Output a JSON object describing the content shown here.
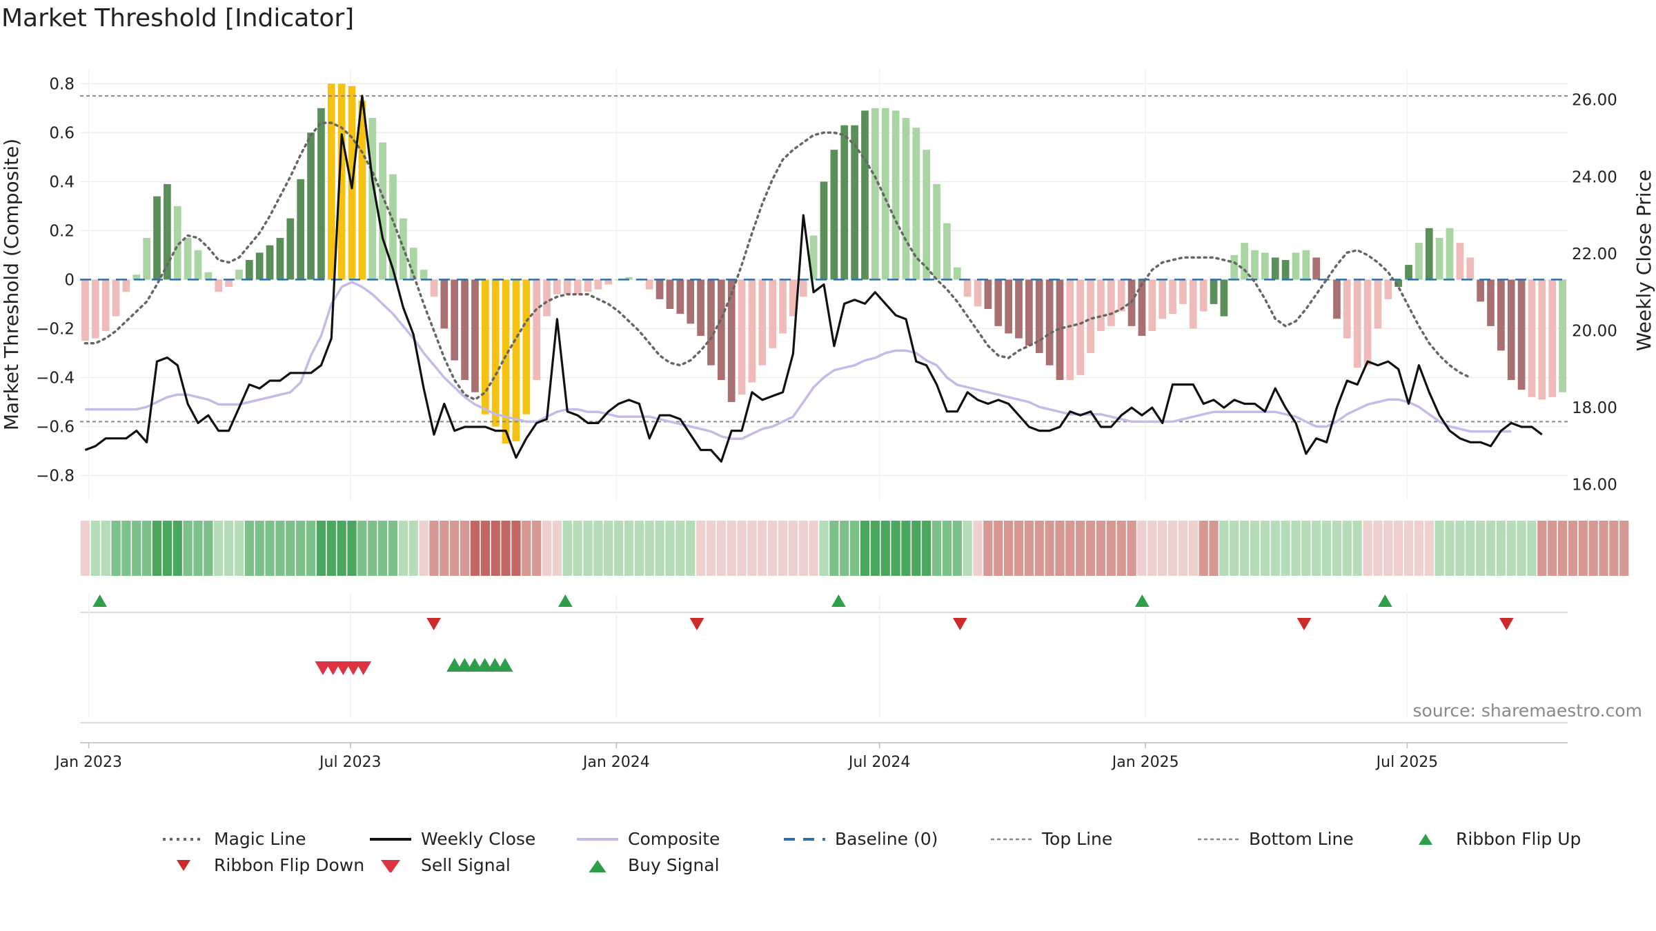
{
  "title": "Market Threshold [Indicator]",
  "source": "source: sharemaestro.com",
  "colors": {
    "bar_strong_green": "#5a8f5a",
    "bar_light_green": "#a8d5a2",
    "bar_strong_red": "#a87070",
    "bar_light_red": "#eebbb8",
    "bar_yellow": "#f5c211",
    "magic_line": "#666666",
    "weekly_close": "#111111",
    "composite": "#c3bce8",
    "baseline": "#2e6fa8",
    "threshold_line": "#888888",
    "ribbon_up": "#2e9e4a",
    "ribbon_down": "#cc2b2b",
    "sell": "#dd3344",
    "buy": "#2e9e4a"
  },
  "chart_data": [
    {
      "type": "bar",
      "title": "Market Threshold [Indicator]",
      "ylabel": "Market Threshold (Composite)",
      "y2label": "Weekly Close Price",
      "ylim": [
        -0.9,
        0.86
      ],
      "y2lim": [
        15.6,
        26.8
      ],
      "yticks": [
        "0.8",
        "0.6",
        "0.4",
        "0.2",
        "0",
        "−0.2",
        "−0.4",
        "−0.6",
        "−0.8"
      ],
      "y2ticks": [
        "26.00",
        "24.00",
        "22.00",
        "20.00",
        "18.00",
        "16.00"
      ],
      "xticks": [
        "Jan 2023",
        "Jul 2023",
        "Jan 2024",
        "Jul 2024",
        "Jan 2025",
        "Jul 2025"
      ],
      "x_start": "2022-12-26",
      "x_end": "2025-10-20",
      "top_line": 0.75,
      "bottom_line": -0.58,
      "grid": true,
      "legend_position": "bottom",
      "histogram_composite": [
        -0.25,
        -0.24,
        -0.21,
        -0.15,
        -0.05,
        0.02,
        0.17,
        0.34,
        0.39,
        0.3,
        0.17,
        0.12,
        0.03,
        -0.05,
        -0.03,
        0.04,
        0.08,
        0.11,
        0.14,
        0.17,
        0.25,
        0.41,
        0.6,
        0.7,
        0.8,
        0.8,
        0.79,
        0.73,
        0.66,
        0.56,
        0.43,
        0.25,
        0.13,
        0.04,
        -0.07,
        -0.2,
        -0.33,
        -0.41,
        -0.46,
        -0.55,
        -0.6,
        -0.67,
        -0.66,
        -0.55,
        -0.41,
        -0.15,
        -0.06,
        -0.06,
        -0.06,
        -0.05,
        -0.04,
        -0.02,
        0.0,
        0.01,
        0.0,
        -0.04,
        -0.08,
        -0.12,
        -0.14,
        -0.18,
        -0.23,
        -0.35,
        -0.41,
        -0.5,
        -0.47,
        -0.42,
        -0.35,
        -0.28,
        -0.22,
        -0.15,
        -0.07,
        0.18,
        0.4,
        0.53,
        0.63,
        0.63,
        0.69,
        0.7,
        0.7,
        0.69,
        0.66,
        0.62,
        0.53,
        0.39,
        0.23,
        0.05,
        -0.07,
        -0.11,
        -0.12,
        -0.19,
        -0.22,
        -0.24,
        -0.27,
        -0.3,
        -0.35,
        -0.41,
        -0.41,
        -0.39,
        -0.3,
        -0.21,
        -0.19,
        -0.13,
        -0.19,
        -0.23,
        -0.21,
        -0.16,
        -0.14,
        -0.1,
        -0.2,
        -0.13,
        -0.1,
        -0.15,
        0.1,
        0.15,
        0.12,
        0.11,
        0.09,
        0.08,
        0.11,
        0.12,
        0.09,
        0.0,
        -0.16,
        -0.24,
        -0.36,
        -0.35,
        -0.2,
        -0.08,
        -0.03,
        0.06,
        0.15,
        0.21,
        0.17,
        0.21,
        0.15,
        0.09,
        -0.09,
        -0.19,
        -0.29,
        -0.41,
        -0.45,
        -0.48,
        -0.49,
        -0.48,
        -0.46
      ],
      "histogram_colors": [
        "lr",
        "lr",
        "lr",
        "lr",
        "lr",
        "lg",
        "lg",
        "sg",
        "sg",
        "lg",
        "lg",
        "lg",
        "lg",
        "lr",
        "lr",
        "lg",
        "sg",
        "sg",
        "sg",
        "sg",
        "sg",
        "sg",
        "sg",
        "sg",
        "y",
        "y",
        "y",
        "y",
        "lg",
        "lg",
        "lg",
        "lg",
        "lg",
        "lg",
        "lr",
        "sr",
        "sr",
        "sr",
        "sr",
        "y",
        "y",
        "y",
        "y",
        "y",
        "lr",
        "lr",
        "lr",
        "lr",
        "lr",
        "lr",
        "lr",
        "lr",
        "lg",
        "lg",
        "lr",
        "lr",
        "sr",
        "sr",
        "sr",
        "sr",
        "sr",
        "sr",
        "sr",
        "sr",
        "lr",
        "lr",
        "lr",
        "lr",
        "lr",
        "lr",
        "lr",
        "lg",
        "sg",
        "sg",
        "sg",
        "sg",
        "sg",
        "lg",
        "lg",
        "lg",
        "lg",
        "lg",
        "lg",
        "lg",
        "lg",
        "lg",
        "lr",
        "lr",
        "sr",
        "sr",
        "sr",
        "sr",
        "sr",
        "sr",
        "sr",
        "sr",
        "lr",
        "lr",
        "lr",
        "lr",
        "lr",
        "lr",
        "sr",
        "sr",
        "lr",
        "lr",
        "lr",
        "lr",
        "lr",
        "lr",
        "sg",
        "sg",
        "lg",
        "lg",
        "lg",
        "lg",
        "sg",
        "sg",
        "lg",
        "lg",
        "sr",
        "sr",
        "sr",
        "lr",
        "lr",
        "lr",
        "lr",
        "lr",
        "sg",
        "sg",
        "lg",
        "sg",
        "lg",
        "lg",
        "lr",
        "lr",
        "sr",
        "sr",
        "sr",
        "sr",
        "sr",
        "lr",
        "lr",
        "lr"
      ],
      "series": [
        {
          "name": "Magic Line",
          "style": "dotted",
          "values": [
            -0.26,
            -0.26,
            -0.24,
            -0.21,
            -0.17,
            -0.13,
            -0.09,
            -0.02,
            0.06,
            0.14,
            0.18,
            0.17,
            0.13,
            0.08,
            0.07,
            0.09,
            0.14,
            0.19,
            0.26,
            0.34,
            0.42,
            0.51,
            0.59,
            0.64,
            0.64,
            0.62,
            0.58,
            0.52,
            0.44,
            0.34,
            0.24,
            0.13,
            0.02,
            -0.1,
            -0.21,
            -0.32,
            -0.41,
            -0.47,
            -0.49,
            -0.46,
            -0.39,
            -0.31,
            -0.24,
            -0.17,
            -0.12,
            -0.09,
            -0.07,
            -0.06,
            -0.06,
            -0.06,
            -0.08,
            -0.1,
            -0.13,
            -0.17,
            -0.21,
            -0.26,
            -0.31,
            -0.34,
            -0.35,
            -0.33,
            -0.29,
            -0.24,
            -0.16,
            -0.06,
            0.06,
            0.19,
            0.31,
            0.41,
            0.49,
            0.53,
            0.56,
            0.59,
            0.6,
            0.6,
            0.59,
            0.55,
            0.49,
            0.42,
            0.33,
            0.24,
            0.16,
            0.09,
            0.05,
            0.0,
            -0.04,
            -0.09,
            -0.15,
            -0.21,
            -0.27,
            -0.31,
            -0.32,
            -0.29,
            -0.27,
            -0.25,
            -0.22,
            -0.2,
            -0.19,
            -0.18,
            -0.16,
            -0.15,
            -0.14,
            -0.12,
            -0.09,
            -0.02,
            0.04,
            0.07,
            0.08,
            0.09,
            0.09,
            0.09,
            0.09,
            0.08,
            0.07,
            0.04,
            -0.01,
            -0.08,
            -0.16,
            -0.19,
            -0.17,
            -0.12,
            -0.06,
            0.0,
            0.06,
            0.11,
            0.12,
            0.1,
            0.07,
            0.03,
            -0.03,
            -0.11,
            -0.19,
            -0.26,
            -0.31,
            -0.35,
            -0.38,
            -0.4
          ]
        },
        {
          "name": "Weekly Close",
          "axis": "right",
          "values": [
            16.9,
            17.0,
            17.2,
            17.2,
            17.2,
            17.4,
            17.1,
            19.2,
            19.3,
            19.1,
            18.1,
            17.6,
            17.8,
            17.4,
            17.4,
            18.0,
            18.6,
            18.5,
            18.7,
            18.7,
            18.9,
            18.9,
            18.9,
            19.1,
            19.8,
            25.1,
            23.7,
            26.1,
            23.9,
            22.4,
            21.6,
            20.6,
            19.9,
            18.5,
            17.3,
            18.1,
            17.4,
            17.5,
            17.5,
            17.5,
            17.4,
            17.4,
            16.7,
            17.2,
            17.6,
            17.7,
            20.3,
            17.9,
            17.8,
            17.6,
            17.6,
            17.9,
            18.1,
            18.2,
            18.1,
            17.2,
            17.8,
            17.8,
            17.7,
            17.3,
            16.9,
            16.9,
            16.6,
            17.4,
            17.4,
            18.4,
            18.2,
            18.3,
            18.4,
            19.4,
            23.0,
            21.0,
            21.2,
            19.6,
            20.7,
            20.8,
            20.7,
            21.0,
            20.7,
            20.4,
            20.3,
            19.2,
            19.1,
            18.6,
            17.9,
            17.9,
            18.4,
            18.2,
            18.1,
            18.2,
            18.1,
            17.8,
            17.5,
            17.4,
            17.4,
            17.5,
            17.9,
            17.8,
            17.9,
            17.5,
            17.5,
            17.8,
            18.0,
            17.8,
            18.0,
            17.6,
            18.6,
            18.6,
            18.6,
            18.1,
            18.2,
            18.0,
            18.2,
            18.1,
            18.1,
            17.9,
            18.5,
            18.0,
            17.6,
            16.8,
            17.2,
            17.1,
            18.0,
            18.7,
            18.6,
            19.2,
            19.1,
            19.2,
            19.0,
            18.1,
            19.1,
            18.4,
            17.8,
            17.4,
            17.2,
            17.1,
            17.1,
            17.0,
            17.4,
            17.6,
            17.5,
            17.5,
            17.3
          ]
        },
        {
          "name": "Composite",
          "values": [
            -0.53,
            -0.53,
            -0.53,
            -0.53,
            -0.53,
            -0.53,
            -0.52,
            -0.5,
            -0.48,
            -0.47,
            -0.47,
            -0.48,
            -0.49,
            -0.51,
            -0.51,
            -0.51,
            -0.5,
            -0.49,
            -0.48,
            -0.47,
            -0.46,
            -0.42,
            -0.31,
            -0.23,
            -0.1,
            -0.03,
            -0.01,
            -0.03,
            -0.06,
            -0.1,
            -0.14,
            -0.19,
            -0.24,
            -0.3,
            -0.35,
            -0.4,
            -0.44,
            -0.48,
            -0.51,
            -0.53,
            -0.55,
            -0.56,
            -0.57,
            -0.58,
            -0.58,
            -0.56,
            -0.54,
            -0.53,
            -0.53,
            -0.54,
            -0.54,
            -0.55,
            -0.56,
            -0.56,
            -0.56,
            -0.56,
            -0.57,
            -0.58,
            -0.59,
            -0.6,
            -0.61,
            -0.62,
            -0.64,
            -0.65,
            -0.65,
            -0.63,
            -0.61,
            -0.6,
            -0.58,
            -0.56,
            -0.5,
            -0.44,
            -0.4,
            -0.37,
            -0.36,
            -0.35,
            -0.33,
            -0.32,
            -0.3,
            -0.29,
            -0.29,
            -0.3,
            -0.33,
            -0.35,
            -0.4,
            -0.43,
            -0.44,
            -0.45,
            -0.46,
            -0.47,
            -0.48,
            -0.49,
            -0.5,
            -0.52,
            -0.53,
            -0.54,
            -0.55,
            -0.55,
            -0.55,
            -0.55,
            -0.56,
            -0.57,
            -0.58,
            -0.58,
            -0.58,
            -0.58,
            -0.58,
            -0.57,
            -0.56,
            -0.55,
            -0.54,
            -0.54,
            -0.54,
            -0.54,
            -0.54,
            -0.54,
            -0.54,
            -0.55,
            -0.56,
            -0.58,
            -0.6,
            -0.6,
            -0.58,
            -0.55,
            -0.53,
            -0.51,
            -0.5,
            -0.49,
            -0.49,
            -0.5,
            -0.52,
            -0.55,
            -0.58,
            -0.6,
            -0.61,
            -0.62,
            -0.62,
            -0.62,
            -0.62,
            -0.62
          ]
        },
        {
          "name": "Baseline (0)",
          "style": "dashed",
          "value": 0
        },
        {
          "name": "Top Line",
          "style": "dotted",
          "value": 0.75
        },
        {
          "name": "Bottom Line",
          "style": "dotted",
          "value": -0.58
        }
      ],
      "ribbon_state": [
        -1,
        1,
        1,
        2,
        2,
        2,
        2,
        3,
        3,
        3,
        2,
        2,
        2,
        1,
        1,
        1,
        2,
        2,
        2,
        2,
        2,
        2,
        2,
        3,
        3,
        3,
        3,
        2,
        2,
        2,
        2,
        1,
        1,
        -1,
        -2,
        -2,
        -2,
        -2,
        -3,
        -3,
        -3,
        -3,
        -3,
        -2,
        -2,
        -1,
        -1,
        1,
        1,
        1,
        1,
        1,
        1,
        1,
        1,
        1,
        1,
        1,
        1,
        1,
        -1,
        -1,
        -1,
        -1,
        -1,
        -1,
        -1,
        -1,
        -1,
        -1,
        -1,
        -1,
        1,
        2,
        2,
        2,
        3,
        3,
        3,
        3,
        3,
        3,
        3,
        2,
        2,
        2,
        1,
        -1,
        -2,
        -2,
        -2,
        -2,
        -2,
        -2,
        -2,
        -2,
        -2,
        -2,
        -2,
        -2,
        -2,
        -2,
        -2,
        -1,
        -1,
        -1,
        -1,
        -1,
        -1,
        -2,
        -2,
        1,
        1,
        1,
        1,
        1,
        1,
        1,
        1,
        1,
        1,
        1,
        1,
        1,
        1,
        -1,
        -1,
        -1,
        -1,
        -1,
        -1,
        -1,
        1,
        1,
        1,
        1,
        1,
        1,
        1,
        1,
        1,
        1,
        -2,
        -2,
        -2,
        -2,
        -2,
        -2,
        -2,
        -2,
        -2
      ],
      "ribbon_flip_up_dates": [
        "2023-01-02",
        "2023-11-20",
        "2024-05-27",
        "2024-12-23",
        "2025-06-09"
      ],
      "ribbon_flip_down_dates": [
        "2023-08-21",
        "2024-02-19",
        "2024-08-19",
        "2025-04-14",
        "2025-09-01"
      ],
      "sell_signal_dates": [
        "2023-06-12",
        "2023-06-19",
        "2023-06-26",
        "2023-07-03",
        "2023-07-10"
      ],
      "buy_signal_dates": [
        "2023-09-11",
        "2023-09-18",
        "2023-09-25",
        "2023-10-02",
        "2023-10-09",
        "2023-10-16"
      ],
      "legend": [
        "Magic Line",
        "Weekly Close",
        "Composite",
        "Baseline (0)",
        "Top Line",
        "Bottom Line",
        "Ribbon Flip Up",
        "Ribbon Flip Down",
        "Sell Signal",
        "Buy Signal"
      ]
    }
  ]
}
